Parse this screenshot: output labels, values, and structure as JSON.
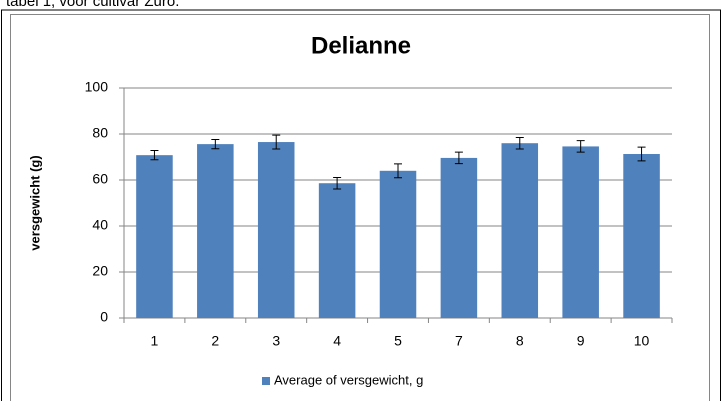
{
  "caption": "tabel 1, voor cultivar Zuro.",
  "chart_data": {
    "type": "bar",
    "title": "Delianne",
    "y_label": "versgewicht (g)",
    "categories": [
      "1",
      "2",
      "3",
      "4",
      "5",
      "7",
      "8",
      "9",
      "10"
    ],
    "series": [
      {
        "name": "Average of versgewicht, g",
        "color": "#4f81bd",
        "values": [
          70.8,
          75.6,
          76.5,
          58.6,
          64,
          69.6,
          76,
          74.6,
          71.3
        ],
        "errors": [
          2,
          2,
          3,
          2.5,
          3,
          2.5,
          2.5,
          2.5,
          3
        ]
      }
    ],
    "ylim": [
      0,
      100
    ],
    "yticks": [
      0,
      20,
      40,
      60,
      80,
      100
    ],
    "grid": true,
    "legend": "bottom"
  }
}
